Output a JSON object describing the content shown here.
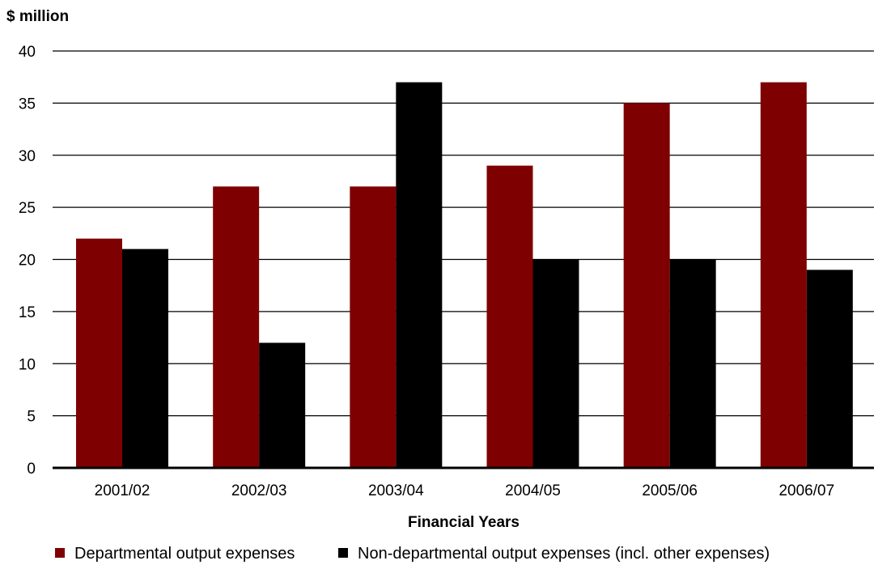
{
  "chart_data": {
    "type": "bar",
    "title": "",
    "ylabel": "$ million",
    "xlabel": "Financial Years",
    "ylim": [
      0,
      40
    ],
    "yticks": [
      0,
      5,
      10,
      15,
      20,
      25,
      30,
      35,
      40
    ],
    "categories": [
      "2001/02",
      "2002/03",
      "2003/04",
      "2004/05",
      "2005/06",
      "2006/07"
    ],
    "series": [
      {
        "name": "Departmental output expenses",
        "color": "#7f0000",
        "values": [
          22,
          27,
          27,
          29,
          35,
          37
        ]
      },
      {
        "name": "Non-departmental output expenses (incl. other expenses)",
        "color": "#000000",
        "values": [
          21,
          12,
          37,
          20,
          20,
          19
        ]
      }
    ],
    "grid": "horizontal",
    "legend_position": "bottom"
  }
}
